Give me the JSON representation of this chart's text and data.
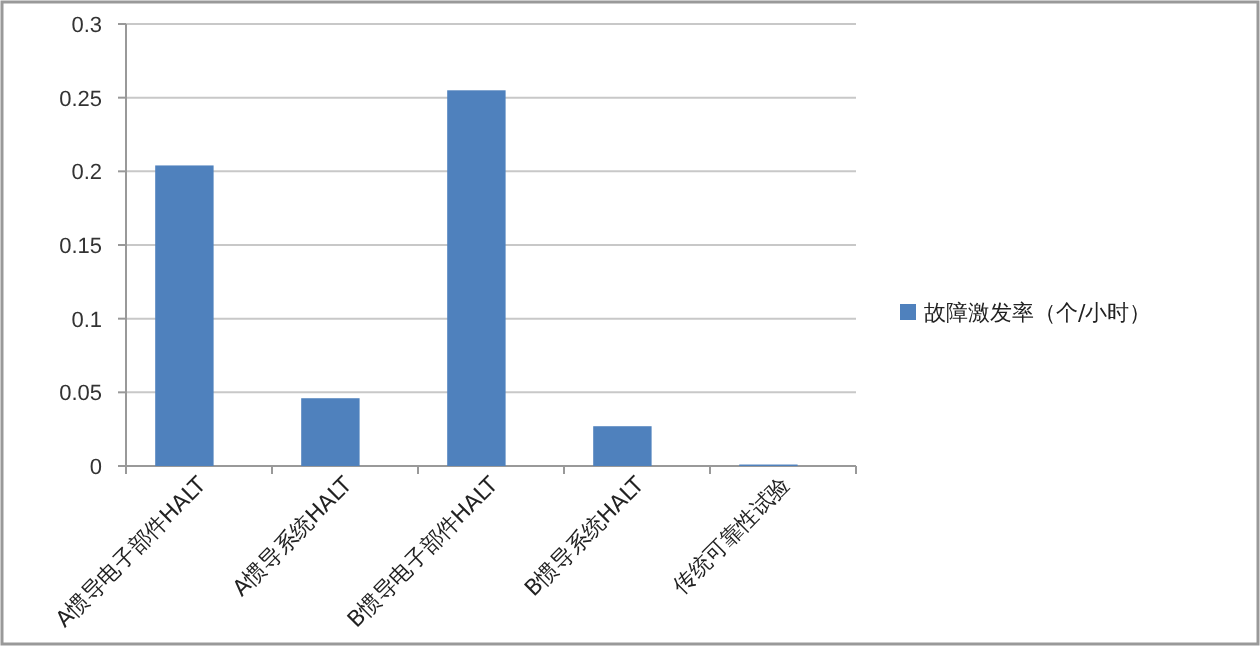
{
  "chart_data": {
    "type": "bar",
    "categories": [
      "A惯导电子部件HALT",
      "A惯导系统HALT",
      "B惯导电子部件HALT",
      "B惯导系统HALT",
      "传统可靠性试验"
    ],
    "series": [
      {
        "name": "故障激发率（个/小时）",
        "color": "#4f81bd",
        "values": [
          0.204,
          0.046,
          0.255,
          0.027,
          0.001
        ]
      }
    ],
    "ylim": [
      0,
      0.3
    ],
    "yticks": [
      0,
      0.05,
      0.1,
      0.15,
      0.2,
      0.25,
      0.3
    ],
    "grid": "y",
    "legend": "right"
  }
}
